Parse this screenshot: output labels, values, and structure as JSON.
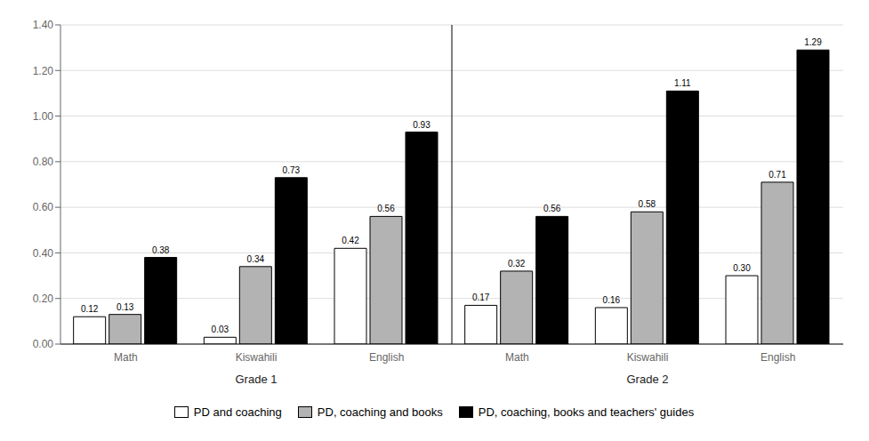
{
  "chart_data": {
    "type": "bar",
    "categories": [
      "Math",
      "Kiswahili",
      "English",
      "Math",
      "Kiswahili",
      "English"
    ],
    "category_groups": [
      "Grade 1",
      "Grade 1",
      "Grade 1",
      "Grade 2",
      "Grade 2",
      "Grade 2"
    ],
    "series": [
      {
        "name": "PD and coaching",
        "color": "#ffffff",
        "values": [
          0.12,
          0.03,
          0.42,
          0.17,
          0.16,
          0.3
        ],
        "value_labels": [
          "0.12",
          "0.03",
          "0.42",
          "0.17",
          "0.16",
          "0.30"
        ]
      },
      {
        "name": "PD, coaching and books",
        "color": "#b3b3b3",
        "values": [
          0.13,
          0.34,
          0.56,
          0.32,
          0.58,
          0.71
        ],
        "value_labels": [
          "0.13",
          "0.34",
          "0.56",
          "0.32",
          "0.58",
          "0.71"
        ]
      },
      {
        "name": "PD, coaching, books and teachers' guides",
        "color": "#000000",
        "values": [
          0.38,
          0.73,
          0.93,
          0.56,
          1.11,
          1.29
        ],
        "value_labels": [
          "0.38",
          "0.73",
          "0.93",
          "0.56",
          "1.11",
          "1.29"
        ]
      }
    ],
    "ylim": [
      0.0,
      1.4
    ],
    "yticks": [
      {
        "value": 0,
        "label": "0.00"
      },
      {
        "value": 0.2,
        "label": "0.20"
      },
      {
        "value": 0.4,
        "label": "0.40"
      },
      {
        "value": 0.6,
        "label": "0.60"
      },
      {
        "value": 0.8,
        "label": "0.80"
      },
      {
        "value": 1.0,
        "label": "1.00"
      },
      {
        "value": 1.2,
        "label": "1.20"
      },
      {
        "value": 1.4,
        "label": "1.40"
      }
    ],
    "grid": true,
    "data_labels": true,
    "legend": "bottom"
  }
}
